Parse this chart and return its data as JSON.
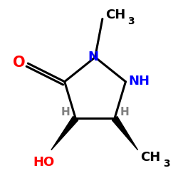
{
  "background_color": "#ffffff",
  "colors": {
    "N": "#0000ff",
    "O": "#ff0000",
    "C": "#000000",
    "H": "#808080",
    "bond": "#000000"
  },
  "ring_scale": 0.38,
  "xlim": [
    -1.45,
    1.25
  ],
  "ylim": [
    -1.45,
    1.45
  ]
}
